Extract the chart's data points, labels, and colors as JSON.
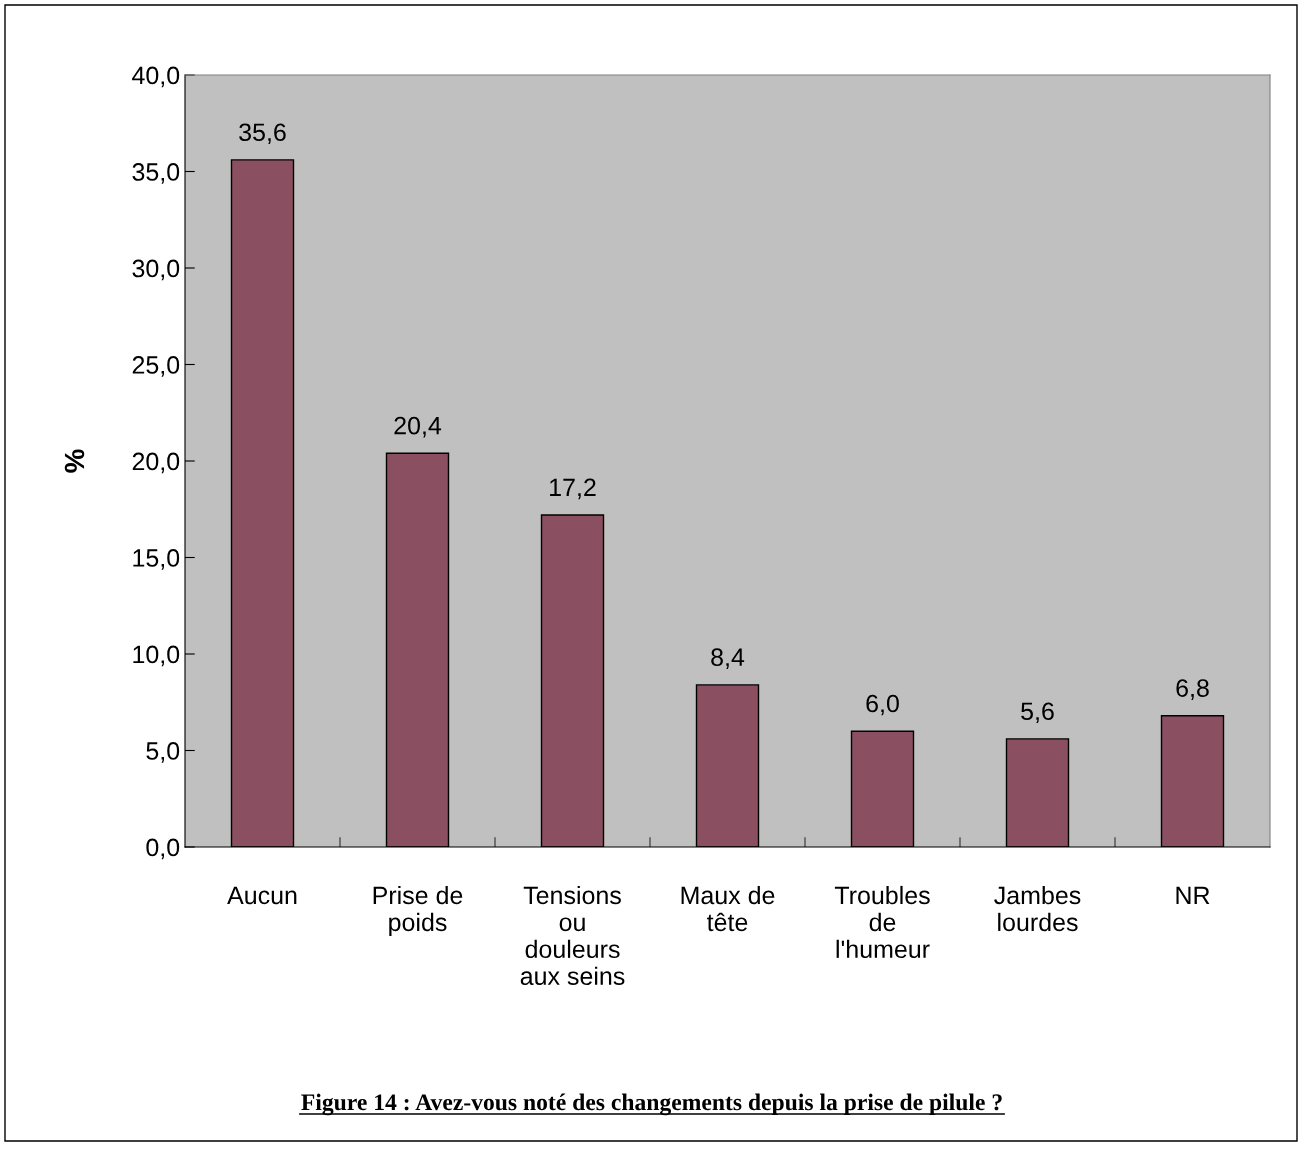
{
  "chart_data": {
    "type": "bar",
    "ylabel": "%",
    "categories": [
      "Aucun",
      "Prise de poids",
      "Tensions ou douleurs aux seins",
      "Maux de tête",
      "Troubles de l'humeur",
      "Jambes lourdes",
      "NR"
    ],
    "values": [
      35.6,
      20.4,
      17.2,
      8.4,
      6.0,
      5.6,
      6.8
    ],
    "value_labels": [
      "35,6",
      "20,4",
      "17,2",
      "8,4",
      "6,0",
      "5,6",
      "6,8"
    ],
    "color": "#8b4f62",
    "ylim": [
      0,
      40
    ],
    "yticks": [
      {
        "value": 0,
        "label": "0,0"
      },
      {
        "value": 5,
        "label": "5,0"
      },
      {
        "value": 10,
        "label": "10,0"
      },
      {
        "value": 15,
        "label": "15,0"
      },
      {
        "value": 20,
        "label": "20,0"
      },
      {
        "value": 25,
        "label": "25,0"
      },
      {
        "value": 30,
        "label": "30,0"
      },
      {
        "value": 35,
        "label": "35,0"
      },
      {
        "value": 40,
        "label": "40,0"
      }
    ],
    "grid": false,
    "legend": false,
    "annotations": [
      "Figure 14 : Avez-vous noté des changements depuis la prise de pilule ?"
    ]
  }
}
